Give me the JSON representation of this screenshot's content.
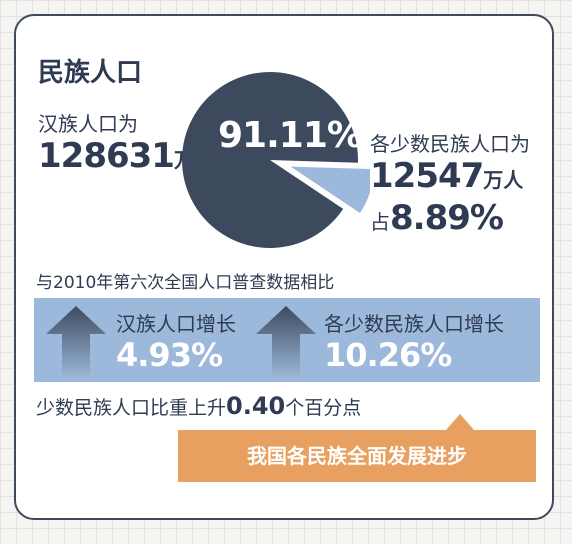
{
  "title": "民族人口",
  "han": {
    "label": "汉族人口为",
    "value": "128631",
    "unit": "万人"
  },
  "minority": {
    "label": "各少数民族人口为",
    "value": "12547",
    "unit": "万人",
    "share_prefix": "占",
    "share": "8.89%"
  },
  "pie_label": "91.11%",
  "comparison_title": "与2010年第六次全国人口普查数据相比",
  "growth": [
    {
      "label": "汉族人口增长",
      "value": "4.93%"
    },
    {
      "label": "各少数民族人口增长",
      "value": "10.26%"
    }
  ],
  "share_change": {
    "prefix": "少数民族人口比重上升",
    "value": "0.40",
    "suffix": "个百分点"
  },
  "callout": "我国各民族全面发展进步",
  "colors": {
    "han": "#3d4a5e",
    "minority": "#9cb8da",
    "accent": "#e8a060"
  },
  "chart_data": {
    "type": "pie",
    "title": "民族人口",
    "slices": [
      {
        "name": "汉族人口",
        "value": 91.11,
        "color": "#3d4a5e"
      },
      {
        "name": "各少数民族人口",
        "value": 8.89,
        "color": "#9cb8da"
      }
    ]
  }
}
